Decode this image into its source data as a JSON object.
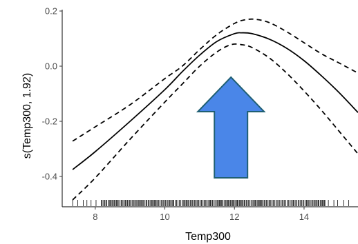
{
  "chart_data": {
    "type": "line",
    "xlabel": "Temp300",
    "ylabel": "s(Temp300, 1.92)",
    "xlim": [
      7.05,
      15.55
    ],
    "ylim": [
      -0.51,
      0.205
    ],
    "x_ticks": [
      8,
      10,
      12,
      14
    ],
    "y_ticks": [
      0.2,
      0.0,
      -0.2,
      -0.4
    ],
    "y_tick_labels": [
      "0.2",
      "0.0",
      "-0.2",
      "-0.4"
    ],
    "grid": false,
    "series": [
      {
        "role": "fit",
        "style": "solid",
        "x": [
          7.35,
          8.0,
          9.0,
          10.0,
          10.5,
          11.0,
          11.5,
          12.0,
          12.2,
          12.5,
          13.0,
          13.5,
          14.0,
          14.5,
          15.0,
          15.55
        ],
        "y": [
          -0.375,
          -0.31,
          -0.2,
          -0.085,
          -0.02,
          0.04,
          0.09,
          0.118,
          0.121,
          0.118,
          0.098,
          0.065,
          0.02,
          -0.035,
          -0.095,
          -0.168
        ]
      },
      {
        "role": "upper-ci",
        "style": "dashed",
        "x": [
          7.35,
          8.0,
          9.0,
          10.0,
          10.5,
          11.0,
          11.5,
          12.0,
          12.3,
          12.6,
          13.0,
          13.5,
          14.0,
          14.5,
          15.0,
          15.55
        ],
        "y": [
          -0.272,
          -0.22,
          -0.14,
          -0.045,
          0.0,
          0.06,
          0.115,
          0.155,
          0.168,
          0.17,
          0.158,
          0.125,
          0.085,
          0.045,
          0.012,
          -0.025
        ]
      },
      {
        "role": "lower-ci",
        "style": "dashed",
        "x": [
          7.35,
          8.0,
          9.0,
          10.0,
          10.5,
          11.0,
          11.5,
          11.9,
          12.2,
          12.5,
          13.0,
          13.5,
          14.0,
          14.5,
          15.0,
          15.55
        ],
        "y": [
          -0.485,
          -0.405,
          -0.265,
          -0.13,
          -0.065,
          0.0,
          0.052,
          0.078,
          0.078,
          0.068,
          0.03,
          -0.025,
          -0.09,
          -0.16,
          -0.235,
          -0.318
        ]
      }
    ],
    "rug": {
      "x_min": 7.35,
      "x_max": 15.3,
      "dense_from": 8.2,
      "dense_to": 14.6
    },
    "annotation": {
      "shape": "up-arrow",
      "fill": "#4a86e8",
      "stroke": "#1f5f73",
      "x": 11.9,
      "y_from": -0.405,
      "y_to": -0.04
    },
    "colors": {
      "line": "#000000",
      "axis": "#333333",
      "tick_label": "#4d4d4d"
    }
  }
}
